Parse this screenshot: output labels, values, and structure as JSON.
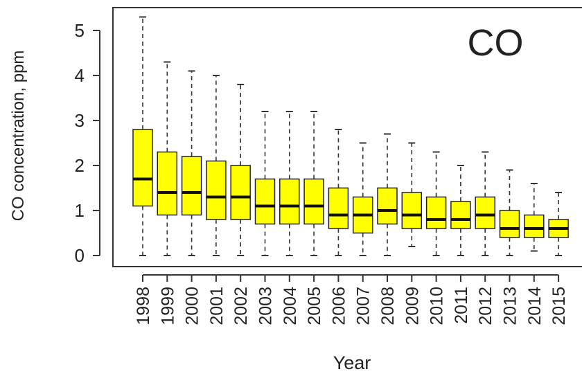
{
  "chart_data": {
    "type": "boxplot",
    "annotation": "CO",
    "xlabel": "Year",
    "ylabel": "CO concentration, ppm",
    "ylim": [
      -0.1,
      5.5
    ],
    "yticks": [
      0,
      1,
      2,
      3,
      4,
      5
    ],
    "grid": false,
    "categories": [
      "1998",
      "1999",
      "2000",
      "2001",
      "2002",
      "2003",
      "2004",
      "2005",
      "2006",
      "2007",
      "2008",
      "2009",
      "2010",
      "2011",
      "2012",
      "2013",
      "2014",
      "2015"
    ],
    "boxes": [
      {
        "whisker_low": 0,
        "q1": 1.1,
        "median": 1.7,
        "q3": 2.8,
        "whisker_high": 5.3
      },
      {
        "whisker_low": 0,
        "q1": 0.9,
        "median": 1.4,
        "q3": 2.3,
        "whisker_high": 4.3
      },
      {
        "whisker_low": 0,
        "q1": 0.9,
        "median": 1.4,
        "q3": 2.2,
        "whisker_high": 4.1
      },
      {
        "whisker_low": 0,
        "q1": 0.8,
        "median": 1.3,
        "q3": 2.1,
        "whisker_high": 4.0
      },
      {
        "whisker_low": 0,
        "q1": 0.8,
        "median": 1.3,
        "q3": 2.0,
        "whisker_high": 3.8
      },
      {
        "whisker_low": 0,
        "q1": 0.7,
        "median": 1.1,
        "q3": 1.7,
        "whisker_high": 3.2
      },
      {
        "whisker_low": 0,
        "q1": 0.7,
        "median": 1.1,
        "q3": 1.7,
        "whisker_high": 3.2
      },
      {
        "whisker_low": 0,
        "q1": 0.7,
        "median": 1.1,
        "q3": 1.7,
        "whisker_high": 3.2
      },
      {
        "whisker_low": 0,
        "q1": 0.6,
        "median": 0.9,
        "q3": 1.5,
        "whisker_high": 2.8
      },
      {
        "whisker_low": 0,
        "q1": 0.5,
        "median": 0.9,
        "q3": 1.3,
        "whisker_high": 2.5
      },
      {
        "whisker_low": 0,
        "q1": 0.7,
        "median": 1.0,
        "q3": 1.5,
        "whisker_high": 2.7
      },
      {
        "whisker_low": 0.2,
        "q1": 0.6,
        "median": 0.9,
        "q3": 1.4,
        "whisker_high": 2.5
      },
      {
        "whisker_low": 0,
        "q1": 0.6,
        "median": 0.8,
        "q3": 1.3,
        "whisker_high": 2.3
      },
      {
        "whisker_low": 0,
        "q1": 0.6,
        "median": 0.8,
        "q3": 1.2,
        "whisker_high": 2.0
      },
      {
        "whisker_low": 0,
        "q1": 0.6,
        "median": 0.9,
        "q3": 1.3,
        "whisker_high": 2.3
      },
      {
        "whisker_low": 0,
        "q1": 0.4,
        "median": 0.6,
        "q3": 1.0,
        "whisker_high": 1.9
      },
      {
        "whisker_low": 0.1,
        "q1": 0.4,
        "median": 0.6,
        "q3": 0.9,
        "whisker_high": 1.6
      },
      {
        "whisker_low": 0,
        "q1": 0.4,
        "median": 0.6,
        "q3": 0.8,
        "whisker_high": 1.4
      }
    ],
    "colors": {
      "box_fill": "#ffff00",
      "box_stroke": "#222222",
      "median": "#111111",
      "whisker": "#333333",
      "frame": "#333333"
    }
  }
}
